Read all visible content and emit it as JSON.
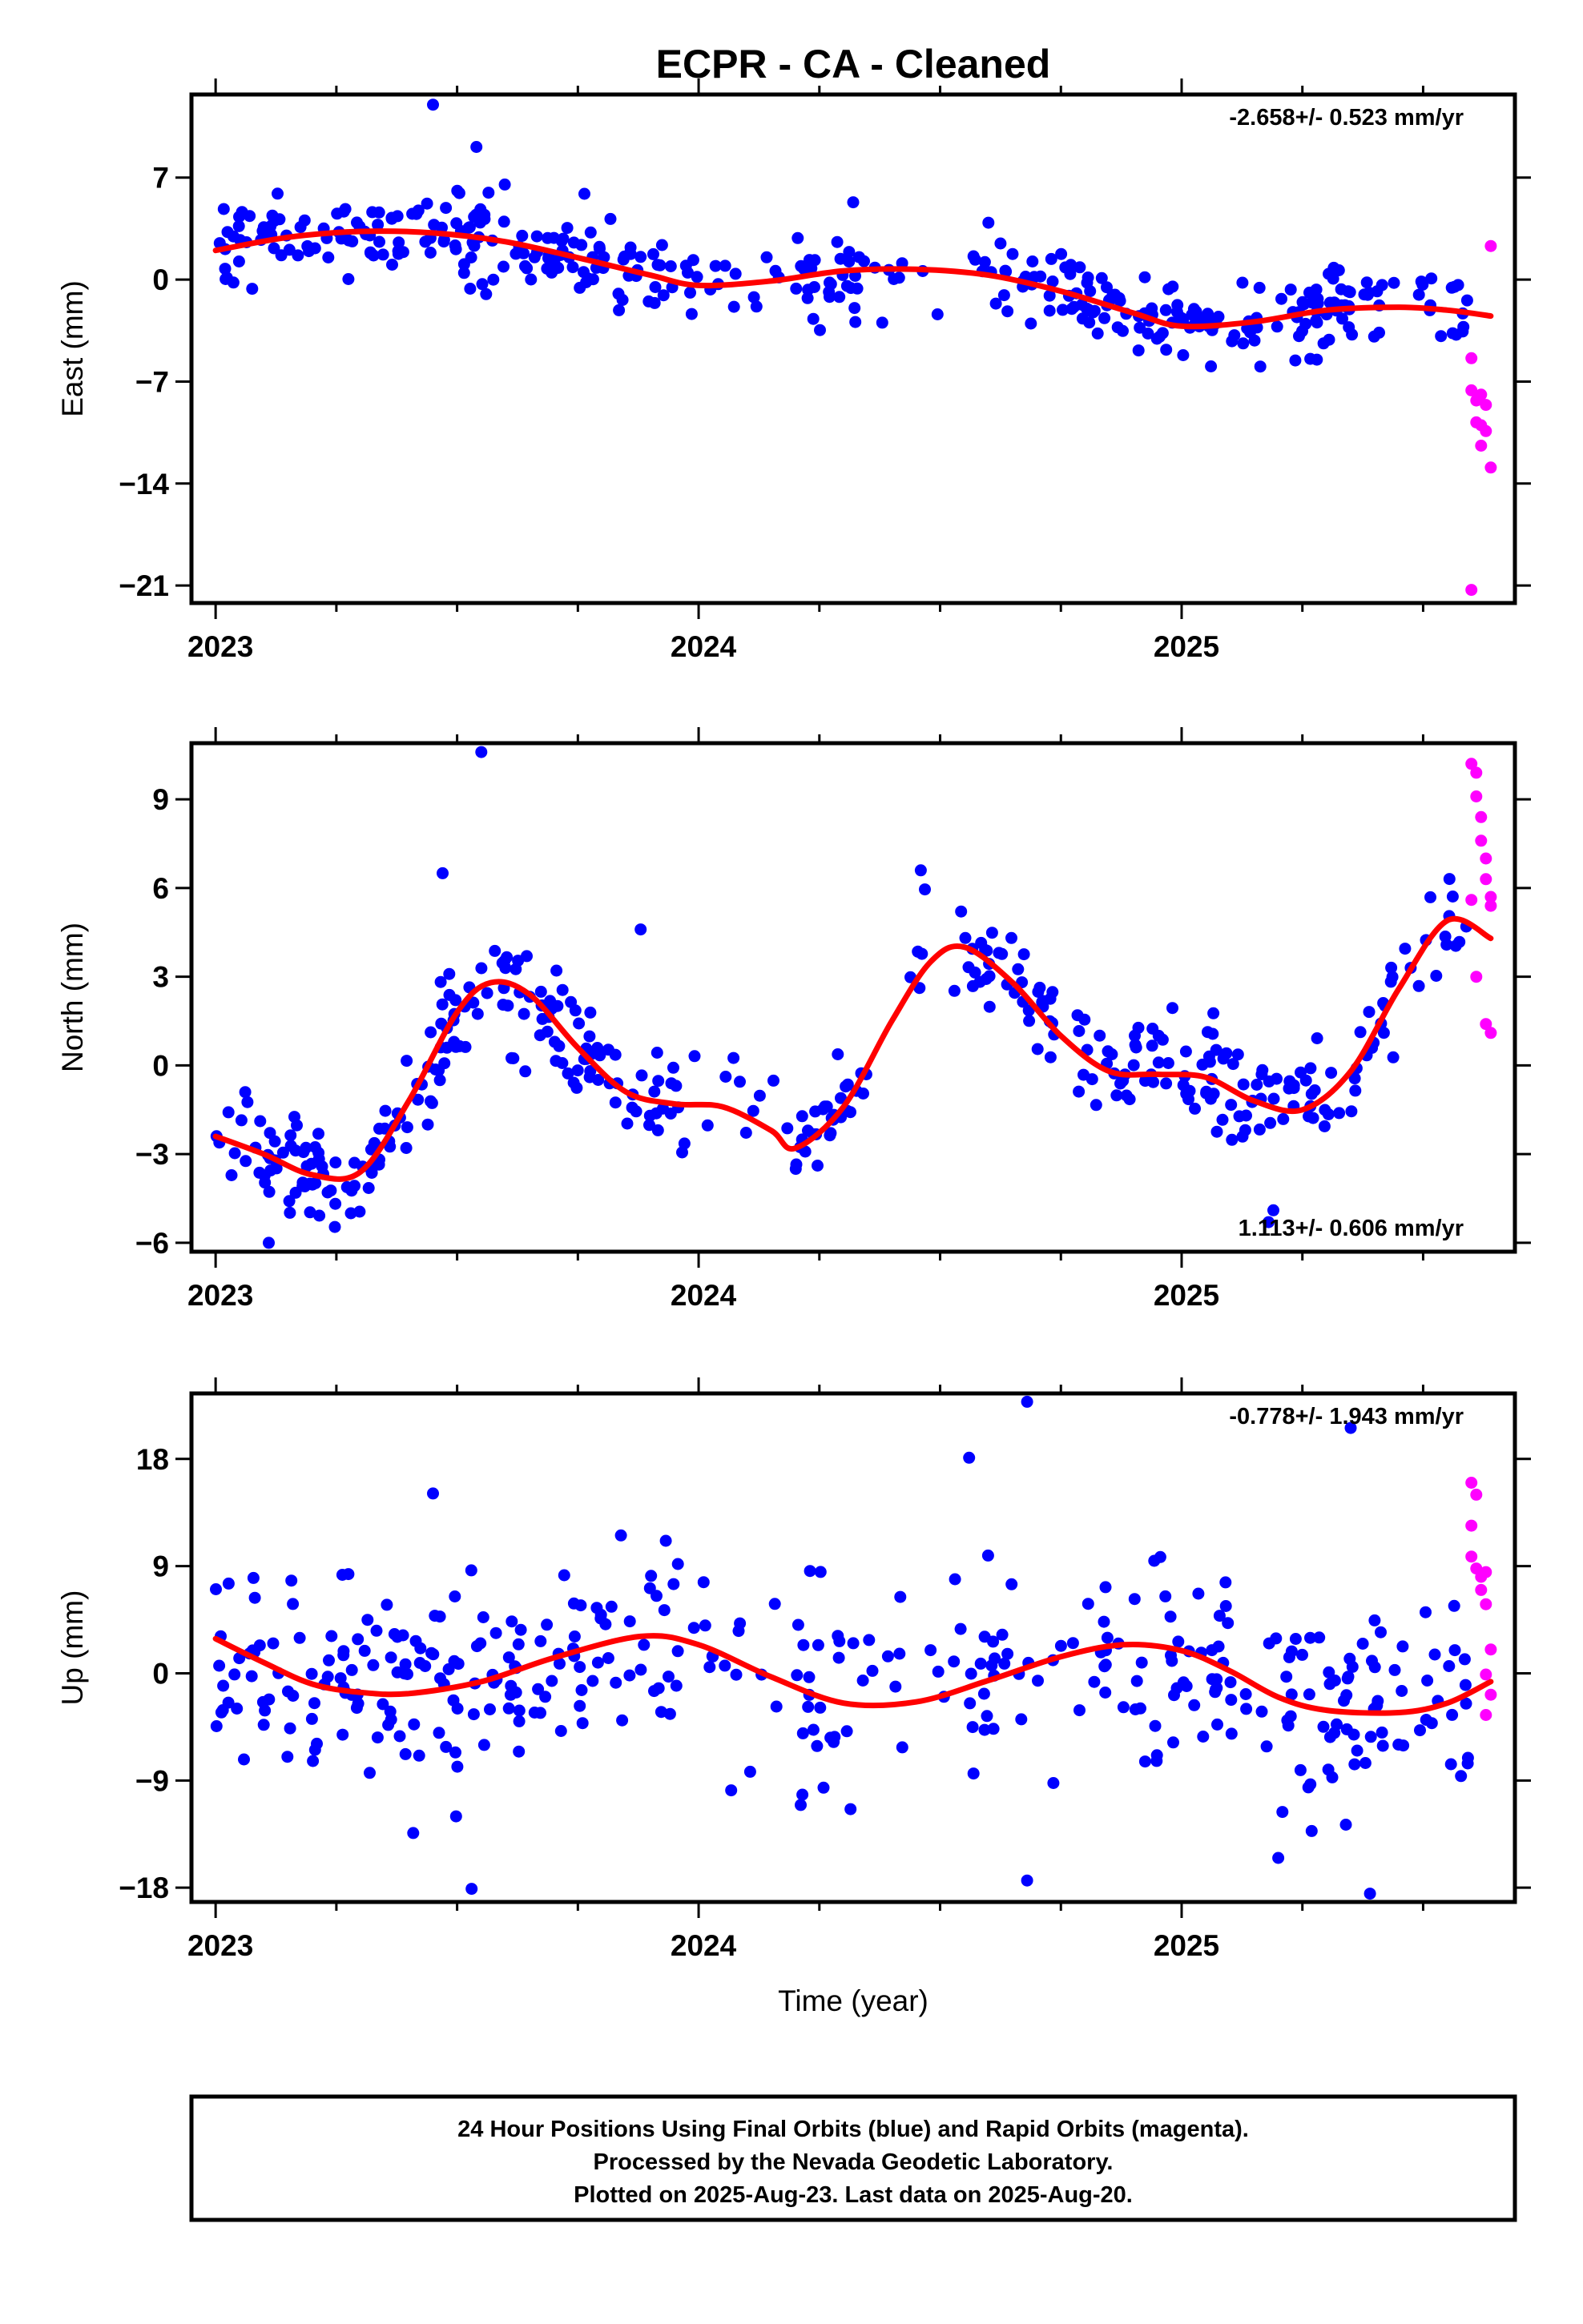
{
  "title": "ECPR  - CA - Cleaned",
  "x_label": "Time (year)",
  "footer": [
    "24 Hour Positions Using Final Orbits (blue) and Rapid Orbits (magenta).",
    "Processed by the Nevada Geodetic Laboratory.",
    "Plotted on 2025-Aug-23. Last data on 2025-Aug-20."
  ],
  "colors": {
    "final": "#0000ff",
    "rapid": "#ff00ff",
    "fit": "#ff0000",
    "frame": "#000000"
  },
  "chart_data": [
    {
      "type": "scatter",
      "component": "east",
      "ylabel": "East (mm)",
      "rate_text": "-2.658+/- 0.523 mm/yr",
      "rate_position": "top-right",
      "xlim": [
        2022.95,
        2025.69
      ],
      "ylim": [
        -22.2,
        12.7
      ],
      "x_ticks": [
        2023,
        2024,
        2025
      ],
      "y_ticks": [
        7,
        0,
        -7,
        -14,
        -21
      ],
      "y_tick_labels": [
        "7",
        "0",
        "−7",
        "−14",
        "−21"
      ],
      "fit": {
        "x": [
          2023.0,
          2023.15,
          2023.3,
          2023.45,
          2023.6,
          2023.75,
          2023.9,
          2024.0,
          2024.15,
          2024.3,
          2024.45,
          2024.6,
          2024.75,
          2024.9,
          2025.0,
          2025.15,
          2025.3,
          2025.45,
          2025.55,
          2025.64
        ],
        "y": [
          2.0,
          2.9,
          3.3,
          3.2,
          2.6,
          1.5,
          0.3,
          -0.4,
          -0.1,
          0.6,
          0.7,
          0.3,
          -0.8,
          -2.3,
          -3.2,
          -2.9,
          -2.1,
          -1.9,
          -2.1,
          -2.5
        ]
      },
      "final": {
        "seed": 101,
        "count": 480,
        "noise": 1.4,
        "outliers_x": [
          2023.45,
          2023.54,
          2024.32,
          2023.56,
          2024.6,
          2025.28
        ],
        "outliers_y": [
          12.0,
          9.1,
          5.3,
          -1.0,
          3.9,
          -5.5
        ]
      },
      "rapid": {
        "x": [
          2025.6,
          2025.6,
          2025.61,
          2025.61,
          2025.62,
          2025.62,
          2025.62,
          2025.63,
          2025.63,
          2025.64,
          2025.64,
          2025.6
        ],
        "y": [
          -5.4,
          -7.6,
          -8.3,
          -9.8,
          -7.9,
          -10.0,
          -11.4,
          -10.4,
          -8.6,
          -12.9,
          2.3,
          -21.3
        ]
      }
    },
    {
      "type": "scatter",
      "component": "north",
      "ylabel": "North (mm)",
      "rate_text": "1.113+/- 0.606 mm/yr",
      "rate_position": "bottom-right",
      "xlim": [
        2022.95,
        2025.69
      ],
      "ylim": [
        -6.3,
        10.9
      ],
      "x_ticks": [
        2023,
        2024,
        2025
      ],
      "y_ticks": [
        9,
        6,
        3,
        0,
        -3,
        -6
      ],
      "y_tick_labels": [
        "9",
        "6",
        "3",
        "0",
        "−3",
        "−6"
      ],
      "fit": {
        "x": [
          2023.0,
          2023.1,
          2023.2,
          2023.3,
          2023.4,
          2023.5,
          2023.57,
          2023.65,
          2023.75,
          2023.85,
          2023.95,
          2024.05,
          2024.15,
          2024.2,
          2024.3,
          2024.4,
          2024.48,
          2024.55,
          2024.65,
          2024.75,
          2024.85,
          2024.95,
          2025.05,
          2025.15,
          2025.25,
          2025.35,
          2025.45,
          2025.55,
          2025.64
        ],
        "y": [
          -2.4,
          -3.0,
          -3.7,
          -3.6,
          -1.2,
          1.8,
          2.8,
          2.4,
          0.6,
          -0.9,
          -1.3,
          -1.4,
          -2.2,
          -2.8,
          -1.4,
          1.5,
          3.5,
          4.0,
          2.8,
          1.0,
          -0.2,
          -0.3,
          -0.4,
          -1.2,
          -1.5,
          -0.2,
          2.6,
          4.9,
          4.3
        ]
      },
      "final": {
        "seed": 202,
        "count": 470,
        "noise": 0.95,
        "outliers_x": [
          2023.55,
          2023.47,
          2024.46,
          2023.11,
          2023.88,
          2025.18,
          2025.19,
          2023.28
        ],
        "outliers_y": [
          10.6,
          6.5,
          6.6,
          -6.0,
          4.6,
          -5.3,
          -4.9,
          -5.0
        ]
      },
      "rapid": {
        "x": [
          2025.6,
          2025.61,
          2025.61,
          2025.62,
          2025.62,
          2025.63,
          2025.63,
          2025.64,
          2025.64,
          2025.6,
          2025.61,
          2025.63,
          2025.64
        ],
        "y": [
          10.2,
          9.9,
          9.1,
          8.4,
          7.6,
          7.0,
          6.3,
          5.7,
          5.4,
          5.6,
          3.0,
          1.4,
          1.1
        ]
      }
    },
    {
      "type": "scatter",
      "component": "up",
      "ylabel": "Up (mm)",
      "rate_text": "-0.778+/- 1.943 mm/yr",
      "rate_position": "top-right",
      "xlim": [
        2022.95,
        2025.69
      ],
      "ylim": [
        -19.2,
        23.5
      ],
      "x_ticks": [
        2023,
        2024,
        2025
      ],
      "y_ticks": [
        18,
        9,
        0,
        -9,
        -18
      ],
      "y_tick_labels": [
        "18",
        "9",
        "0",
        "−9",
        "−18"
      ],
      "fit": {
        "x": [
          2023.0,
          2023.1,
          2023.2,
          2023.3,
          2023.4,
          2023.55,
          2023.7,
          2023.88,
          2024.0,
          2024.15,
          2024.3,
          2024.45,
          2024.6,
          2024.75,
          2024.88,
          2025.0,
          2025.1,
          2025.2,
          2025.3,
          2025.45,
          2025.55,
          2025.64
        ],
        "y": [
          2.9,
          0.9,
          -0.9,
          -1.6,
          -1.7,
          -0.7,
          1.3,
          3.1,
          2.4,
          -0.3,
          -2.5,
          -2.4,
          -0.6,
          1.4,
          2.4,
          1.9,
          0.2,
          -2.0,
          -3.1,
          -3.3,
          -2.5,
          -0.7
        ]
      },
      "final": {
        "seed": 303,
        "count": 460,
        "noise": 4.4,
        "outliers_x": [
          2024.68,
          2025.35,
          2024.56,
          2023.45,
          2024.68,
          2023.53,
          2025.39,
          2025.2
        ],
        "outliers_y": [
          22.8,
          20.6,
          18.1,
          15.1,
          -17.4,
          -18.1,
          -18.5,
          -15.5
        ]
      },
      "rapid": {
        "x": [
          2025.6,
          2025.61,
          2025.6,
          2025.6,
          2025.61,
          2025.62,
          2025.63,
          2025.63,
          2025.62,
          2025.64,
          2025.63,
          2025.64,
          2025.63
        ],
        "y": [
          16.0,
          15.0,
          12.4,
          9.8,
          8.8,
          8.1,
          8.5,
          5.8,
          7.0,
          2.0,
          -0.1,
          -1.8,
          -3.5
        ]
      }
    }
  ]
}
